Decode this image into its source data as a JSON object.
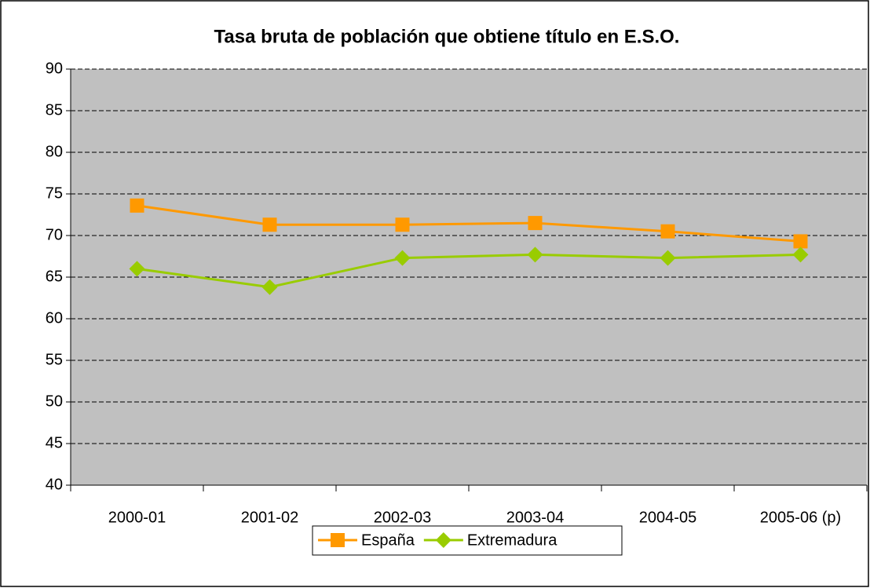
{
  "chart_data": {
    "type": "line",
    "title": "Tasa bruta de población que obtiene título en E.S.O.",
    "categories": [
      "2000-01",
      "2001-02",
      "2002-03",
      "2003-04",
      "2004-05",
      "2005-06 (p)"
    ],
    "series": [
      {
        "name": "España",
        "color": "#ff9900",
        "marker": "square",
        "values": [
          73.6,
          71.3,
          71.3,
          71.5,
          70.5,
          69.3
        ]
      },
      {
        "name": "Extremadura",
        "color": "#99cc00",
        "marker": "diamond",
        "values": [
          66.0,
          63.8,
          67.3,
          67.7,
          67.3,
          67.7
        ]
      }
    ],
    "ylim": [
      40,
      90
    ],
    "yticks": [
      40,
      45,
      50,
      55,
      60,
      65,
      70,
      75,
      80,
      85,
      90
    ],
    "grid": true,
    "legend": "bottom"
  }
}
